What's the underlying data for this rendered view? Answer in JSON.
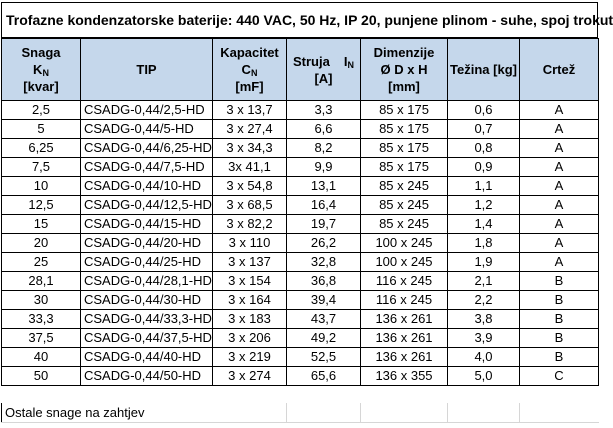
{
  "title": "Trofazne kondenzatorske baterije: 440 VAC, 50 Hz, IP 20, punjene plinom - suhe, spoj trokut",
  "headers": {
    "snaga": {
      "line1": "Snaga",
      "sym": "K",
      "sub": "N",
      "unit": "[kvar]"
    },
    "tip": "TIP",
    "kapacitet": {
      "line1": "Kapacitet",
      "sym": "C",
      "sub": "N",
      "unit": "[mF]"
    },
    "struja": {
      "line1": "Struja",
      "sym": "I",
      "sub": "N",
      "unit": "[A]"
    },
    "dimenzije": {
      "line1": "Dimenzije",
      "line2": "Ø D x H",
      "unit": "[mm]"
    },
    "tezina": "Težina [kg]",
    "crtez": "Crtež"
  },
  "rows": [
    {
      "snaga": "2,5",
      "tip": "CSADG-0,44/2,5-HD",
      "kap": "3 x 13,7",
      "struja": "3,3",
      "dim": "85 x 175",
      "tez": "0,6",
      "crtez": "A"
    },
    {
      "snaga": "5",
      "tip": "CSADG-0,44/5-HD",
      "kap": "3 x 27,4",
      "struja": "6,6",
      "dim": "85 x 175",
      "tez": "0,7",
      "crtez": "A"
    },
    {
      "snaga": "6,25",
      "tip": "CSADG-0,44/6,25-HD",
      "kap": "3 x 34,3",
      "struja": "8,2",
      "dim": "85 x 175",
      "tez": "0,8",
      "crtez": "A"
    },
    {
      "snaga": "7,5",
      "tip": "CSADG-0,44/7,5-HD",
      "kap": "3x 41,1",
      "struja": "9,9",
      "dim": "85 x 175",
      "tez": "0,9",
      "crtez": "A"
    },
    {
      "snaga": "10",
      "tip": "CSADG-0,44/10-HD",
      "kap": "3 x 54,8",
      "struja": "13,1",
      "dim": "85 x 245",
      "tez": "1,1",
      "crtez": "A"
    },
    {
      "snaga": "12,5",
      "tip": "CSADG-0,44/12,5-HD",
      "kap": "3 x 68,5",
      "struja": "16,4",
      "dim": "85 x 245",
      "tez": "1,2",
      "crtez": "A"
    },
    {
      "snaga": "15",
      "tip": "CSADG-0,44/15-HD",
      "kap": "3 x 82,2",
      "struja": "19,7",
      "dim": "85 x 245",
      "tez": "1,4",
      "crtez": "A"
    },
    {
      "snaga": "20",
      "tip": "CSADG-0,44/20-HD",
      "kap": "3 x 110",
      "struja": "26,2",
      "dim": "100 x 245",
      "tez": "1,8",
      "crtez": "A"
    },
    {
      "snaga": "25",
      "tip": "CSADG-0,44/25-HD",
      "kap": "3 x 137",
      "struja": "32,8",
      "dim": "100 x 245",
      "tez": "1,9",
      "crtez": "A"
    },
    {
      "snaga": "28,1",
      "tip": "CSADG-0,44/28,1-HD",
      "kap": "3 x 154",
      "struja": "36,8",
      "dim": "116 x 245",
      "tez": "2,1",
      "crtez": "B"
    },
    {
      "snaga": "30",
      "tip": "CSADG-0,44/30-HD",
      "kap": "3 x 164",
      "struja": "39,4",
      "dim": "116 x 245",
      "tez": "2,2",
      "crtez": "B"
    },
    {
      "snaga": "33,3",
      "tip": "CSADG-0,44/33,3-HD",
      "kap": "3 x 183",
      "struja": "43,7",
      "dim": "136 x 261",
      "tez": "3,8",
      "crtez": "B"
    },
    {
      "snaga": "37,5",
      "tip": "CSADG-0,44/37,5-HD",
      "kap": "3 x 206",
      "struja": "49,2",
      "dim": "136 x 261",
      "tez": "3,9",
      "crtez": "B"
    },
    {
      "snaga": "40",
      "tip": "CSADG-0,44/40-HD",
      "kap": "3 x 219",
      "struja": "52,5",
      "dim": "136 x 261",
      "tez": "4,0",
      "crtez": "B"
    },
    {
      "snaga": "50",
      "tip": "CSADG-0,44/50-HD",
      "kap": "3 x 274",
      "struja": "65,6",
      "dim": "136 x 355",
      "tez": "5,0",
      "crtez": "C"
    }
  ],
  "footnote": "Ostale snage na zahtjev"
}
